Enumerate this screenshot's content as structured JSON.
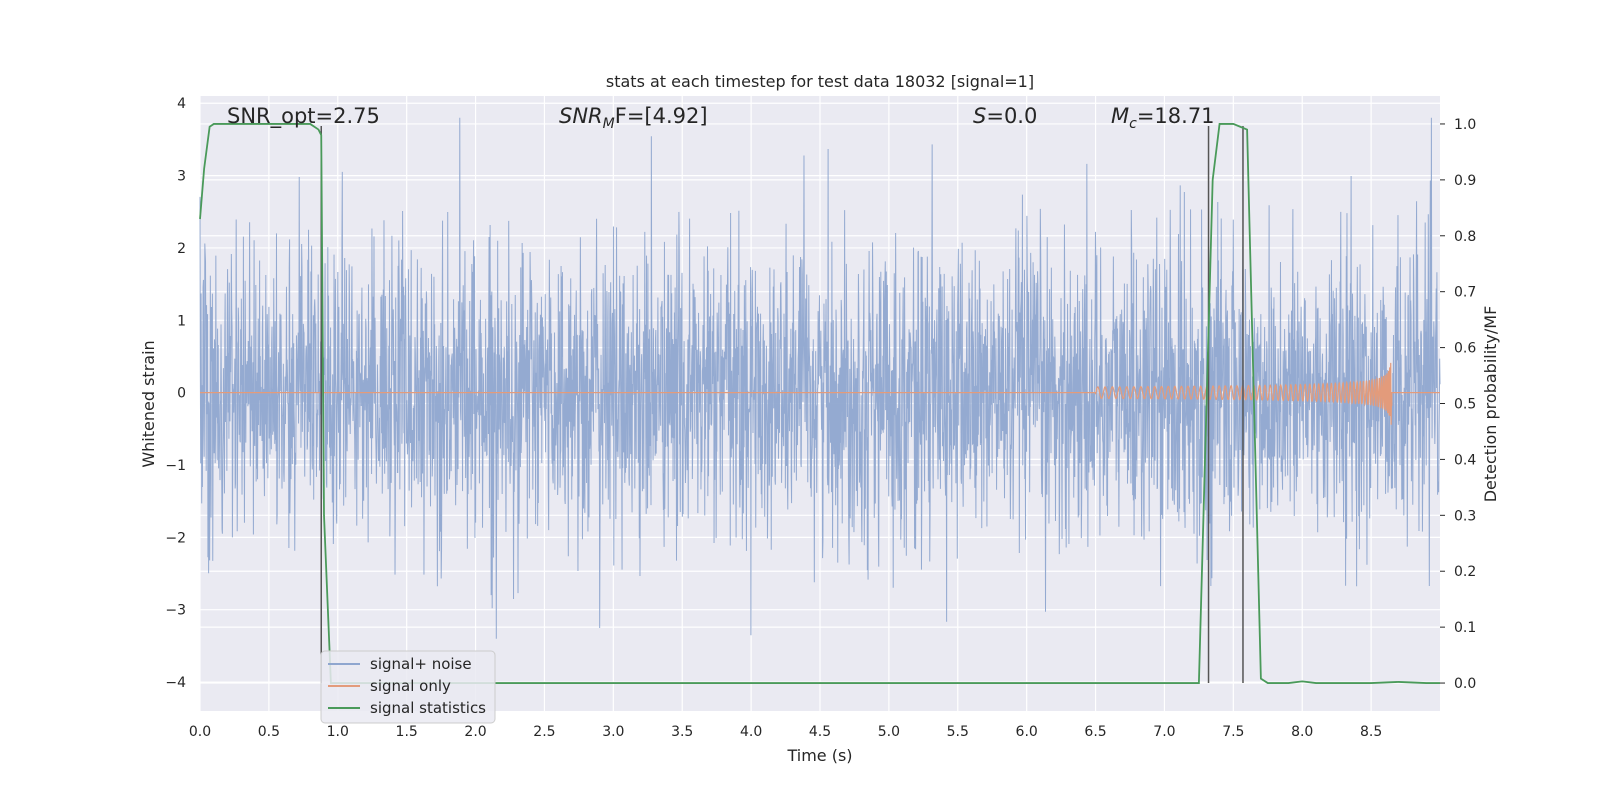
{
  "chart_data": {
    "type": "line",
    "title": "stats at each timestep for test data 18032 [signal=1]",
    "xlabel": "Time (s)",
    "ylabel": "Whitened strain",
    "y2label": "Detection probability/MF",
    "xlim": [
      0.0,
      9.0
    ],
    "ylim": [
      -4.4,
      4.1
    ],
    "y2lim": [
      -0.05,
      1.05
    ],
    "xticks": [
      "0.0",
      "0.5",
      "1.0",
      "1.5",
      "2.0",
      "2.5",
      "3.0",
      "3.5",
      "4.0",
      "4.5",
      "5.0",
      "5.5",
      "6.0",
      "6.5",
      "7.0",
      "7.5",
      "8.0",
      "8.5"
    ],
    "yticks": [
      "4",
      "3",
      "2",
      "1",
      "0",
      "−1",
      "−2",
      "−3",
      "−4"
    ],
    "y2ticks": [
      "1.0",
      "0.9",
      "0.8",
      "0.7",
      "0.6",
      "0.5",
      "0.4",
      "0.3",
      "0.2",
      "0.1",
      "0.0"
    ],
    "grid": true,
    "legend_position": "lower-left",
    "annotations": {
      "snr_opt": "SNR_opt=2.75",
      "snr_mf_base": "SNR",
      "snr_mf_sub": "M",
      "snr_mf_rest": "F=[4.92]",
      "s_base": "S",
      "s_rest": "=0.0",
      "mc_base": "M",
      "mc_sub": "c",
      "mc_rest": "=18.71"
    },
    "vertical_lines_x": [
      0.88,
      7.32,
      7.57
    ],
    "series": [
      {
        "name": "signal+ noise",
        "color": "#8fa6cf",
        "description_envelope": {
          "typical_abs": 1.4,
          "peak_max": 3.8,
          "peak_min": -3.8
        }
      },
      {
        "name": "signal only",
        "color": "#e39b7b",
        "chirp_start": 6.5,
        "chirp_end": 8.65,
        "chirp_peak_amp": 0.55
      },
      {
        "name": "signal statistics",
        "color": "#4a9a5a",
        "x": [
          0.0,
          0.03,
          0.07,
          0.1,
          0.2,
          0.4,
          0.6,
          0.8,
          0.86,
          0.88,
          0.9,
          0.95,
          1.0,
          2.0,
          3.0,
          4.0,
          5.0,
          6.0,
          7.0,
          7.25,
          7.3,
          7.35,
          7.4,
          7.5,
          7.55,
          7.6,
          7.65,
          7.7,
          7.75,
          7.8,
          7.9,
          8.0,
          8.1,
          8.5,
          8.7,
          8.9,
          9.0
        ],
        "y": [
          0.83,
          0.92,
          0.995,
          1.0,
          1.0,
          1.0,
          1.0,
          1.0,
          0.99,
          0.98,
          0.3,
          0.0,
          0.0,
          0.0,
          0.0,
          0.0,
          0.0,
          0.0,
          0.0,
          0.0,
          0.45,
          0.9,
          1.0,
          1.0,
          0.995,
          0.99,
          0.5,
          0.008,
          0.0,
          0.0,
          0.0,
          0.003,
          0.0,
          0.0,
          0.002,
          0.0,
          0.0
        ]
      }
    ]
  }
}
